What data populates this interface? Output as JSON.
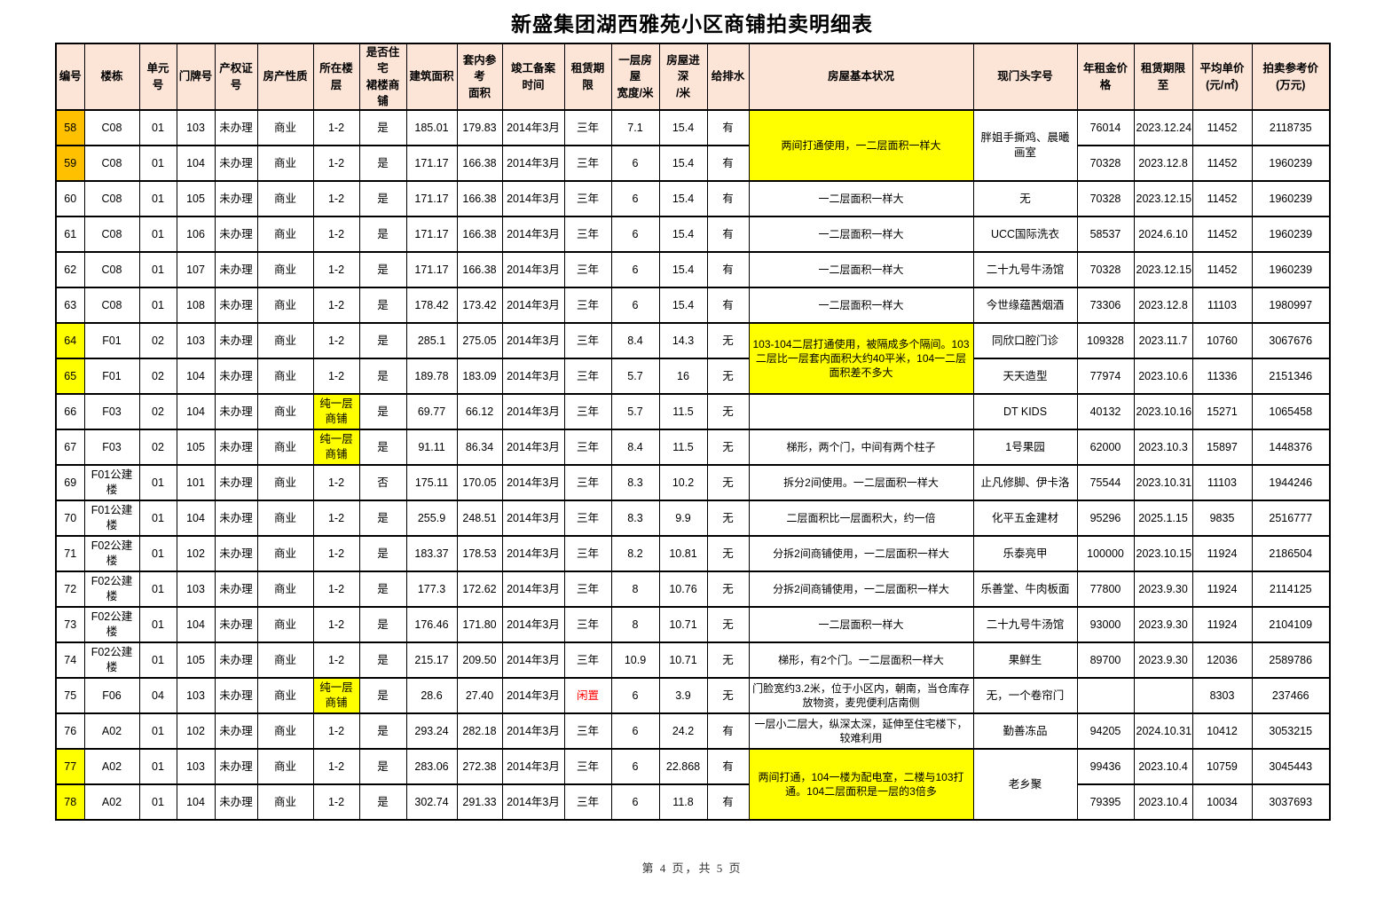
{
  "title": "新盛集团湖西雅苑小区商铺拍卖明细表",
  "footer": {
    "page_label": "第 4 页，共 5 页"
  },
  "colors": {
    "header_bg": "#FCE4D6",
    "highlight_orange": "#FFC000",
    "highlight_yellow": "#FFFF00",
    "idle_red": "#FF0000",
    "border": "#000000"
  },
  "table": {
    "headers": [
      "编号",
      "楼栋",
      "单元号",
      "门牌号",
      "产权证号",
      "房产性质",
      "所在楼层",
      "是否住宅\n裙楼商铺",
      "建筑面积",
      "套内参考\n面积",
      "竣工备案\n时间",
      "租赁期限",
      "一层房屋\n宽度/米",
      "房屋进深\n/米",
      "给排水",
      "房屋基本状况",
      "现门头字号",
      "年租金价格",
      "租赁期限至",
      "平均单价\n(元/㎡)",
      "拍卖参考价\n(万元)"
    ],
    "rows": [
      {
        "no": "58",
        "no_bg": "#FFC000",
        "building": "C08",
        "unit": "01",
        "door": "103",
        "cert": "未办理",
        "nature": "商业",
        "floor": "1-2",
        "podium": "是",
        "area": "185.01",
        "inner": "179.83",
        "completion": "2014年3月",
        "lease": "三年",
        "width": "7.1",
        "depth": "15.4",
        "drain": "有",
        "condition": {
          "text": "两间打通使用，一二层面积一样大",
          "rowspan": 2,
          "bg": "#FFFF00"
        },
        "sign": {
          "text": "胖姐手撕鸡、晨曦画室",
          "rowspan": 2
        },
        "rent": "76014",
        "until": "2023.12.24",
        "avg": "11452",
        "ref": "2118735"
      },
      {
        "no": "59",
        "no_bg": "#FFC000",
        "building": "C08",
        "unit": "01",
        "door": "104",
        "cert": "未办理",
        "nature": "商业",
        "floor": "1-2",
        "podium": "是",
        "area": "171.17",
        "inner": "166.38",
        "completion": "2014年3月",
        "lease": "三年",
        "width": "6",
        "depth": "15.4",
        "drain": "有",
        "condition": null,
        "sign": null,
        "rent": "70328",
        "until": "2023.12.8",
        "avg": "11452",
        "ref": "1960239"
      },
      {
        "no": "60",
        "building": "C08",
        "unit": "01",
        "door": "105",
        "cert": "未办理",
        "nature": "商业",
        "floor": "1-2",
        "podium": "是",
        "area": "171.17",
        "inner": "166.38",
        "completion": "2014年3月",
        "lease": "三年",
        "width": "6",
        "depth": "15.4",
        "drain": "有",
        "condition": "一二层面积一样大",
        "sign": "无",
        "rent": "70328",
        "until": "2023.12.15",
        "avg": "11452",
        "ref": "1960239"
      },
      {
        "no": "61",
        "building": "C08",
        "unit": "01",
        "door": "106",
        "cert": "未办理",
        "nature": "商业",
        "floor": "1-2",
        "podium": "是",
        "area": "171.17",
        "inner": "166.38",
        "completion": "2014年3月",
        "lease": "三年",
        "width": "6",
        "depth": "15.4",
        "drain": "有",
        "condition": "一二层面积一样大",
        "sign": "UCC国际洗衣",
        "rent": "58537",
        "until": "2024.6.10",
        "avg": "11452",
        "ref": "1960239"
      },
      {
        "no": "62",
        "building": "C08",
        "unit": "01",
        "door": "107",
        "cert": "未办理",
        "nature": "商业",
        "floor": "1-2",
        "podium": "是",
        "area": "171.17",
        "inner": "166.38",
        "completion": "2014年3月",
        "lease": "三年",
        "width": "6",
        "depth": "15.4",
        "drain": "有",
        "condition": "一二层面积一样大",
        "sign": "二十九号牛汤馆",
        "rent": "70328",
        "until": "2023.12.15",
        "avg": "11452",
        "ref": "1960239"
      },
      {
        "no": "63",
        "building": "C08",
        "unit": "01",
        "door": "108",
        "cert": "未办理",
        "nature": "商业",
        "floor": "1-2",
        "podium": "是",
        "area": "178.42",
        "inner": "173.42",
        "completion": "2014年3月",
        "lease": "三年",
        "width": "6",
        "depth": "15.4",
        "drain": "有",
        "condition": "一二层面积一样大",
        "sign": "今世缘蕴茜烟酒",
        "rent": "73306",
        "until": "2023.12.8",
        "avg": "11103",
        "ref": "1980997"
      },
      {
        "no": "64",
        "no_bg": "#FFFF00",
        "building": "F01",
        "unit": "02",
        "door": "103",
        "cert": "未办理",
        "nature": "商业",
        "floor": "1-2",
        "podium": "是",
        "area": "285.1",
        "inner": "275.05",
        "completion": "2014年3月",
        "lease": "三年",
        "width": "8.4",
        "depth": "14.3",
        "drain": "无",
        "condition": {
          "text": "103-104二层打通使用，被隔成多个隔间。103二层比一层套内面积大约40平米，104一二层面积差不多大",
          "rowspan": 2,
          "bg": "#FFFF00"
        },
        "sign": "同欣口腔门诊",
        "rent": "109328",
        "until": "2023.11.7",
        "avg": "10760",
        "ref": "3067676"
      },
      {
        "no": "65",
        "no_bg": "#FFFF00",
        "building": "F01",
        "unit": "02",
        "door": "104",
        "cert": "未办理",
        "nature": "商业",
        "floor": "1-2",
        "podium": "是",
        "area": "189.78",
        "inner": "183.09",
        "completion": "2014年3月",
        "lease": "三年",
        "width": "5.7",
        "depth": "16",
        "drain": "无",
        "condition": null,
        "sign": "天天造型",
        "rent": "77974",
        "until": "2023.10.6",
        "avg": "11336",
        "ref": "2151346"
      },
      {
        "no": "66",
        "building": "F03",
        "unit": "02",
        "door": "104",
        "cert": "未办理",
        "nature": "商业",
        "floor": "纯一层商铺",
        "floor_bg": "#FFFF00",
        "podium": "是",
        "area": "69.77",
        "inner": "66.12",
        "completion": "2014年3月",
        "lease": "三年",
        "width": "5.7",
        "depth": "11.5",
        "drain": "无",
        "condition": "",
        "sign": "DT KIDS",
        "rent": "40132",
        "until": "2023.10.16",
        "avg": "15271",
        "ref": "1065458"
      },
      {
        "no": "67",
        "building": "F03",
        "unit": "02",
        "door": "105",
        "cert": "未办理",
        "nature": "商业",
        "floor": "纯一层商铺",
        "floor_bg": "#FFFF00",
        "podium": "是",
        "area": "91.11",
        "inner": "86.34",
        "completion": "2014年3月",
        "lease": "三年",
        "width": "8.4",
        "depth": "11.5",
        "drain": "无",
        "condition": "梯形，两个门，中间有两个柱子",
        "sign": "1号果园",
        "rent": "62000",
        "until": "2023.10.3",
        "avg": "15897",
        "ref": "1448376"
      },
      {
        "no": "69",
        "building": "F01公建楼",
        "unit": "01",
        "door": "101",
        "cert": "未办理",
        "nature": "商业",
        "floor": "1-2",
        "podium": "否",
        "area": "175.11",
        "inner": "170.05",
        "completion": "2014年3月",
        "lease": "三年",
        "width": "8.3",
        "depth": "10.2",
        "drain": "无",
        "condition": "拆分2间使用。一二层面积一样大",
        "sign": "止凡修脚、伊卡洛",
        "rent": "75544",
        "until": "2023.10.31",
        "avg": "11103",
        "ref": "1944246"
      },
      {
        "no": "70",
        "building": "F01公建楼",
        "unit": "01",
        "door": "104",
        "cert": "未办理",
        "nature": "商业",
        "floor": "1-2",
        "podium": "是",
        "area": "255.9",
        "inner": "248.51",
        "completion": "2014年3月",
        "lease": "三年",
        "width": "8.3",
        "depth": "9.9",
        "drain": "无",
        "condition": "二层面积比一层面积大，约一倍",
        "sign": "化平五金建材",
        "rent": "95296",
        "until": "2025.1.15",
        "avg": "9835",
        "ref": "2516777"
      },
      {
        "no": "71",
        "building": "F02公建楼",
        "unit": "01",
        "door": "102",
        "cert": "未办理",
        "nature": "商业",
        "floor": "1-2",
        "podium": "是",
        "area": "183.37",
        "inner": "178.53",
        "completion": "2014年3月",
        "lease": "三年",
        "width": "8.2",
        "depth": "10.81",
        "drain": "无",
        "condition": "分拆2间商铺使用，一二层面积一样大",
        "sign": "乐泰亮甲",
        "rent": "100000",
        "until": "2023.10.15",
        "avg": "11924",
        "ref": "2186504"
      },
      {
        "no": "72",
        "building": "F02公建楼",
        "unit": "01",
        "door": "103",
        "cert": "未办理",
        "nature": "商业",
        "floor": "1-2",
        "podium": "是",
        "area": "177.3",
        "inner": "172.62",
        "completion": "2014年3月",
        "lease": "三年",
        "width": "8",
        "depth": "10.76",
        "drain": "无",
        "condition": "分拆2间商铺使用，一二层面积一样大",
        "sign": "乐善堂、牛肉板面",
        "rent": "77800",
        "until": "2023.9.30",
        "avg": "11924",
        "ref": "2114125"
      },
      {
        "no": "73",
        "building": "F02公建楼",
        "unit": "01",
        "door": "104",
        "cert": "未办理",
        "nature": "商业",
        "floor": "1-2",
        "podium": "是",
        "area": "176.46",
        "inner": "171.80",
        "completion": "2014年3月",
        "lease": "三年",
        "width": "8",
        "depth": "10.71",
        "drain": "无",
        "condition": "一二层面积一样大",
        "sign": "二十九号牛汤馆",
        "rent": "93000",
        "until": "2023.9.30",
        "avg": "11924",
        "ref": "2104109"
      },
      {
        "no": "74",
        "building": "F02公建楼",
        "unit": "01",
        "door": "105",
        "cert": "未办理",
        "nature": "商业",
        "floor": "1-2",
        "podium": "是",
        "area": "215.17",
        "inner": "209.50",
        "completion": "2014年3月",
        "lease": "三年",
        "width": "10.9",
        "depth": "10.71",
        "drain": "无",
        "condition": "梯形，有2个门。一二层面积一样大",
        "sign": "果鲜生",
        "rent": "89700",
        "until": "2023.9.30",
        "avg": "12036",
        "ref": "2589786"
      },
      {
        "no": "75",
        "building": "F06",
        "unit": "04",
        "door": "103",
        "cert": "未办理",
        "nature": "商业",
        "floor": "纯一层商铺",
        "floor_bg": "#FFFF00",
        "podium": "是",
        "area": "28.6",
        "inner": "27.40",
        "completion": "2014年3月",
        "lease": "闲置",
        "lease_color": "#FF0000",
        "width": "6",
        "depth": "3.9",
        "drain": "无",
        "condition": "门脸宽约3.2米，位于小区内，朝南，当仓库存放物资，麦兜便利店南侧",
        "sign": "无，一个卷帘门",
        "rent": "",
        "until": "",
        "avg": "8303",
        "ref": "237466"
      },
      {
        "no": "76",
        "building": "A02",
        "unit": "01",
        "door": "102",
        "cert": "未办理",
        "nature": "商业",
        "floor": "1-2",
        "podium": "是",
        "area": "293.24",
        "inner": "282.18",
        "completion": "2014年3月",
        "lease": "三年",
        "width": "6",
        "depth": "24.2",
        "drain": "有",
        "condition": "一层小二层大，纵深太深，延伸至住宅楼下，较难利用",
        "sign": "勤善冻品",
        "rent": "94205",
        "until": "2024.10.31",
        "avg": "10412",
        "ref": "3053215"
      },
      {
        "no": "77",
        "no_bg": "#FFFF00",
        "building": "A02",
        "unit": "01",
        "door": "103",
        "cert": "未办理",
        "nature": "商业",
        "floor": "1-2",
        "podium": "是",
        "area": "283.06",
        "inner": "272.38",
        "completion": "2014年3月",
        "lease": "三年",
        "width": "6",
        "depth": "22.868",
        "drain": "有",
        "condition": {
          "text": "两间打通，104一楼为配电室，二楼与103打通。104二层面积是一层的3倍多",
          "rowspan": 2,
          "bg": "#FFFF00"
        },
        "sign": {
          "text": "老乡聚",
          "rowspan": 2
        },
        "rent": "99436",
        "until": "2023.10.4",
        "avg": "10759",
        "ref": "3045443"
      },
      {
        "no": "78",
        "no_bg": "#FFFF00",
        "building": "A02",
        "unit": "01",
        "door": "104",
        "cert": "未办理",
        "nature": "商业",
        "floor": "1-2",
        "podium": "是",
        "area": "302.74",
        "inner": "291.33",
        "completion": "2014年3月",
        "lease": "三年",
        "width": "6",
        "depth": "11.8",
        "drain": "有",
        "condition": null,
        "sign": null,
        "rent": "79395",
        "until": "2023.10.4",
        "avg": "10034",
        "ref": "3037693"
      }
    ]
  }
}
